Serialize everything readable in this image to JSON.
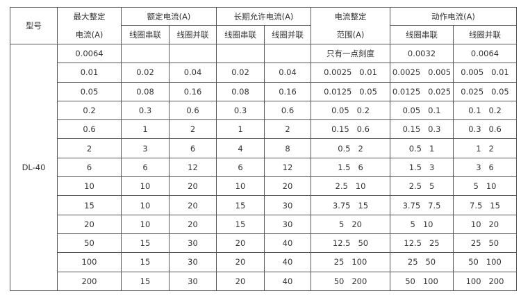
{
  "header": {
    "model": "型号",
    "max_setting_1": "最大整定",
    "max_setting_2": "电流(A)",
    "rated": "额定电流(A)",
    "long_term": "长期允许电流(A)",
    "range_1": "电流整定",
    "range_2": "范围(A)",
    "action": "动作电流(A)",
    "series": "线圈串联",
    "parallel": "线圈并联"
  },
  "model": "DL-40",
  "rows": [
    [
      "0.0064",
      "",
      "",
      "",
      "",
      "只有一点刻度",
      "0.0032",
      "0.0064"
    ],
    [
      "0.01",
      "0.02",
      "0.04",
      "0.02",
      "0.04",
      "0.0025   0.01",
      "0.0025   0.005",
      "0.005   0.01"
    ],
    [
      "0.05",
      "0.08",
      "0.16",
      "0.08",
      "0.16",
      "0.0125   0.05",
      "0.0125   0.025",
      "0.025   0.05"
    ],
    [
      "0.2",
      "0.3",
      "0.6",
      "0.3",
      "0.6",
      "0.05   0.2",
      "0.05   0.1",
      "0.1   0.2"
    ],
    [
      "0.6",
      "1",
      "2",
      "1",
      "2",
      "0.15   0.6",
      "0.15   0.3",
      "0.3   0.6"
    ],
    [
      "2",
      "3",
      "6",
      "4",
      "8",
      "0.5   2",
      "0.5   1",
      "1   2"
    ],
    [
      "6",
      "6",
      "12",
      "6",
      "12",
      "1.5   6",
      "1.5   3",
      "3   6"
    ],
    [
      "10",
      "10",
      "20",
      "10",
      "20",
      "2.5   10",
      "2.5   5",
      "5   10"
    ],
    [
      "15",
      "10",
      "20",
      "15",
      "30",
      "3.75   15",
      "3.75   7.5",
      "7.5   15"
    ],
    [
      "20",
      "10",
      "20",
      "15",
      "30",
      "5   20",
      "5   10",
      "10   20"
    ],
    [
      "50",
      "15",
      "30",
      "20",
      "40",
      "12.5   50",
      "12.5   25",
      "25   50"
    ],
    [
      "100",
      "15",
      "30",
      "20",
      "40",
      "25   100",
      "25   50",
      "50   100"
    ],
    [
      "200",
      "15",
      "30",
      "20",
      "40",
      "50   200",
      "50   100",
      "100   200"
    ]
  ]
}
